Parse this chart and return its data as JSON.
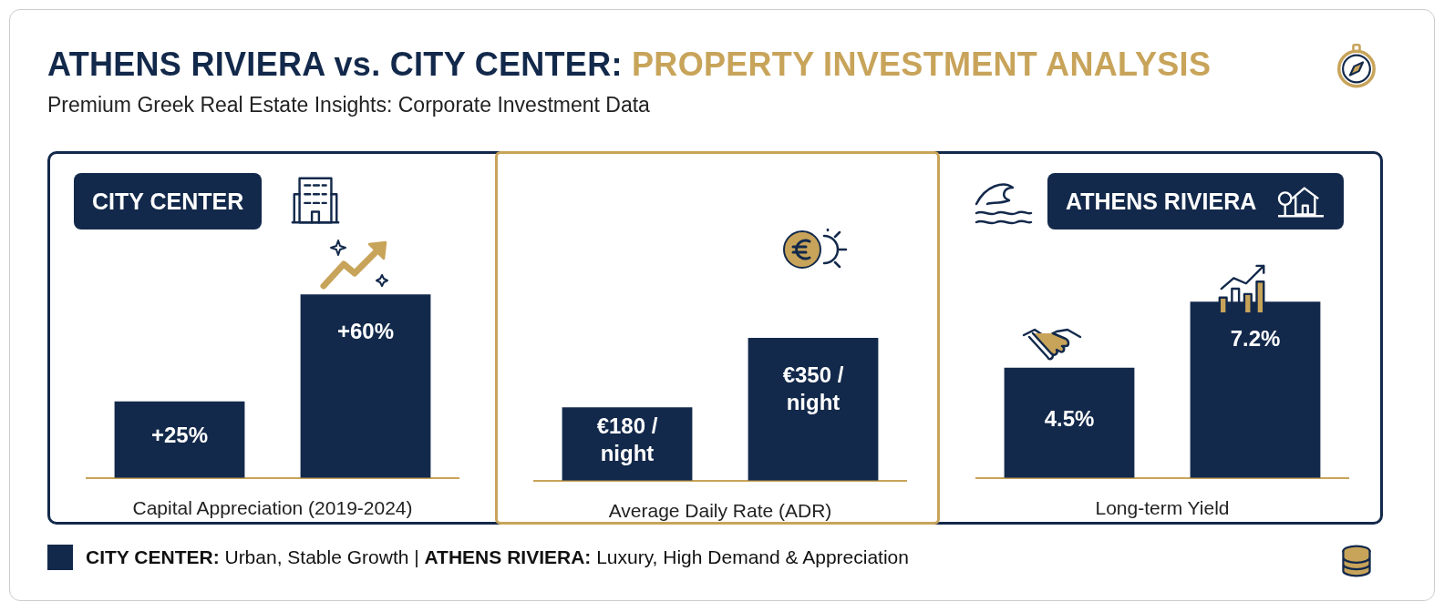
{
  "chart_data": [
    {
      "type": "other",
      "title": "ATHENS RIVIERA vs. CITY CENTER: PROPERTY INVESTMENT ANALYSIS",
      "subtitle": "Premium Greek Real Estate Insights: Corporate Investment Data"
    },
    {
      "type": "bar",
      "xlabel": "Capital Appreciation (2019-2024)",
      "categories": [
        null,
        null
      ],
      "values": [
        25,
        60
      ],
      "value_labels": [
        "+25%",
        "+60%"
      ],
      "color": "#13294b",
      "tick_labels": false,
      "annotations": [
        "CITY CENTER"
      ]
    },
    {
      "type": "bar",
      "xlabel": "Average Daily Rate (ADR)",
      "categories": [
        null,
        null
      ],
      "values": [
        180,
        350
      ],
      "value_labels": [
        "€180 / night",
        "€350 / night"
      ],
      "color": "#13294b",
      "tick_labels": false
    },
    {
      "type": "bar",
      "xlabel": "Long-term Yield",
      "categories": [
        null,
        null
      ],
      "values": [
        4.5,
        7.2
      ],
      "value_labels": [
        "4.5%",
        "7.2%"
      ],
      "color": "#13294b",
      "tick_labels": false,
      "annotations": [
        "ATHENS RIVIERA"
      ]
    },
    {
      "type": "other",
      "annotations": [
        "CITY CENTER: Urban, Stable Growth | ATHENS RIVIERA: Luxury, High Demand & Appreciation"
      ]
    }
  ]
}
